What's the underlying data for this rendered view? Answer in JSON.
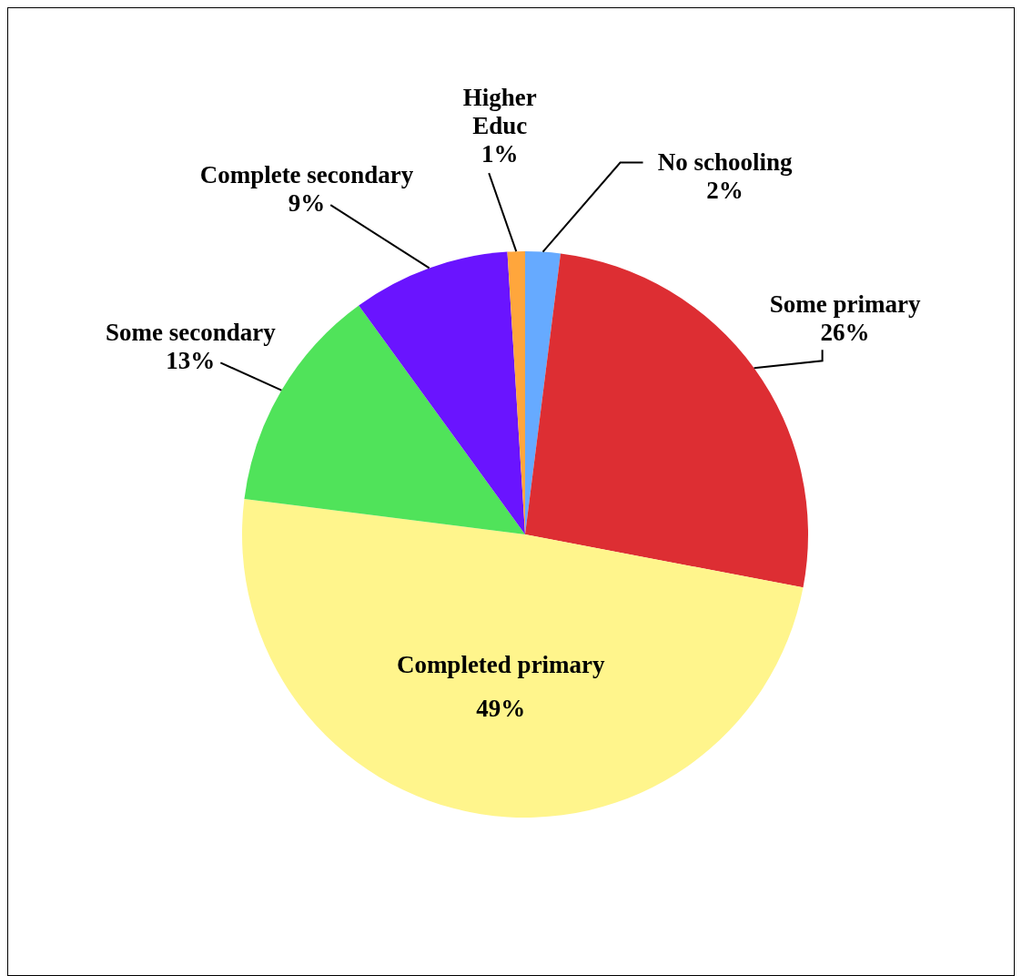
{
  "chart_data": {
    "type": "pie",
    "categories": [
      "No schooling",
      "Some primary",
      "Completed primary",
      "Some secondary",
      "Complete secondary",
      "Higher Educ"
    ],
    "values": [
      2,
      26,
      49,
      13,
      9,
      1
    ],
    "value_labels": [
      "2%",
      "26%",
      "49%",
      "13%",
      "9%",
      "1%"
    ],
    "colors": [
      "#66aaff",
      "#dd2e33",
      "#fff58c",
      "#50e35a",
      "#6a14ff",
      "#ffa63c"
    ]
  }
}
